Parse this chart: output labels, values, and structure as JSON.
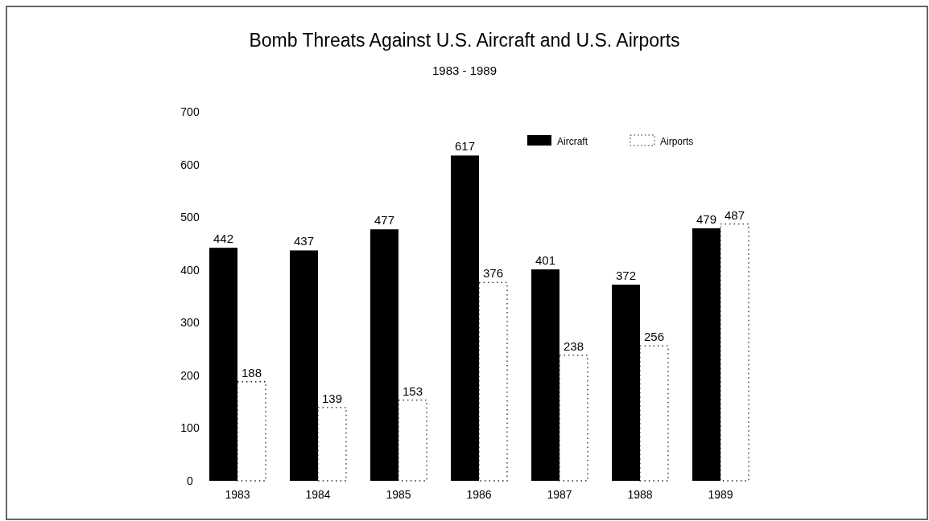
{
  "chart_data": {
    "type": "bar",
    "title": "Bomb Threats Against U.S. Aircraft and U.S. Airports",
    "subtitle": "1983 - 1989",
    "categories": [
      "1983",
      "1984",
      "1985",
      "1986",
      "1987",
      "1988",
      "1989"
    ],
    "series": [
      {
        "name": "Aircraft",
        "color": "#000000",
        "values": [
          442,
          437,
          477,
          617,
          401,
          372,
          479
        ]
      },
      {
        "name": "Airports",
        "color": "#ffffff",
        "values": [
          188,
          139,
          153,
          376,
          238,
          256,
          487
        ]
      }
    ],
    "ylim": [
      0,
      700
    ],
    "yticks": [
      0,
      100,
      200,
      300,
      400,
      500,
      600,
      700
    ],
    "grid": false,
    "legend": "top right",
    "data_labels": true
  }
}
